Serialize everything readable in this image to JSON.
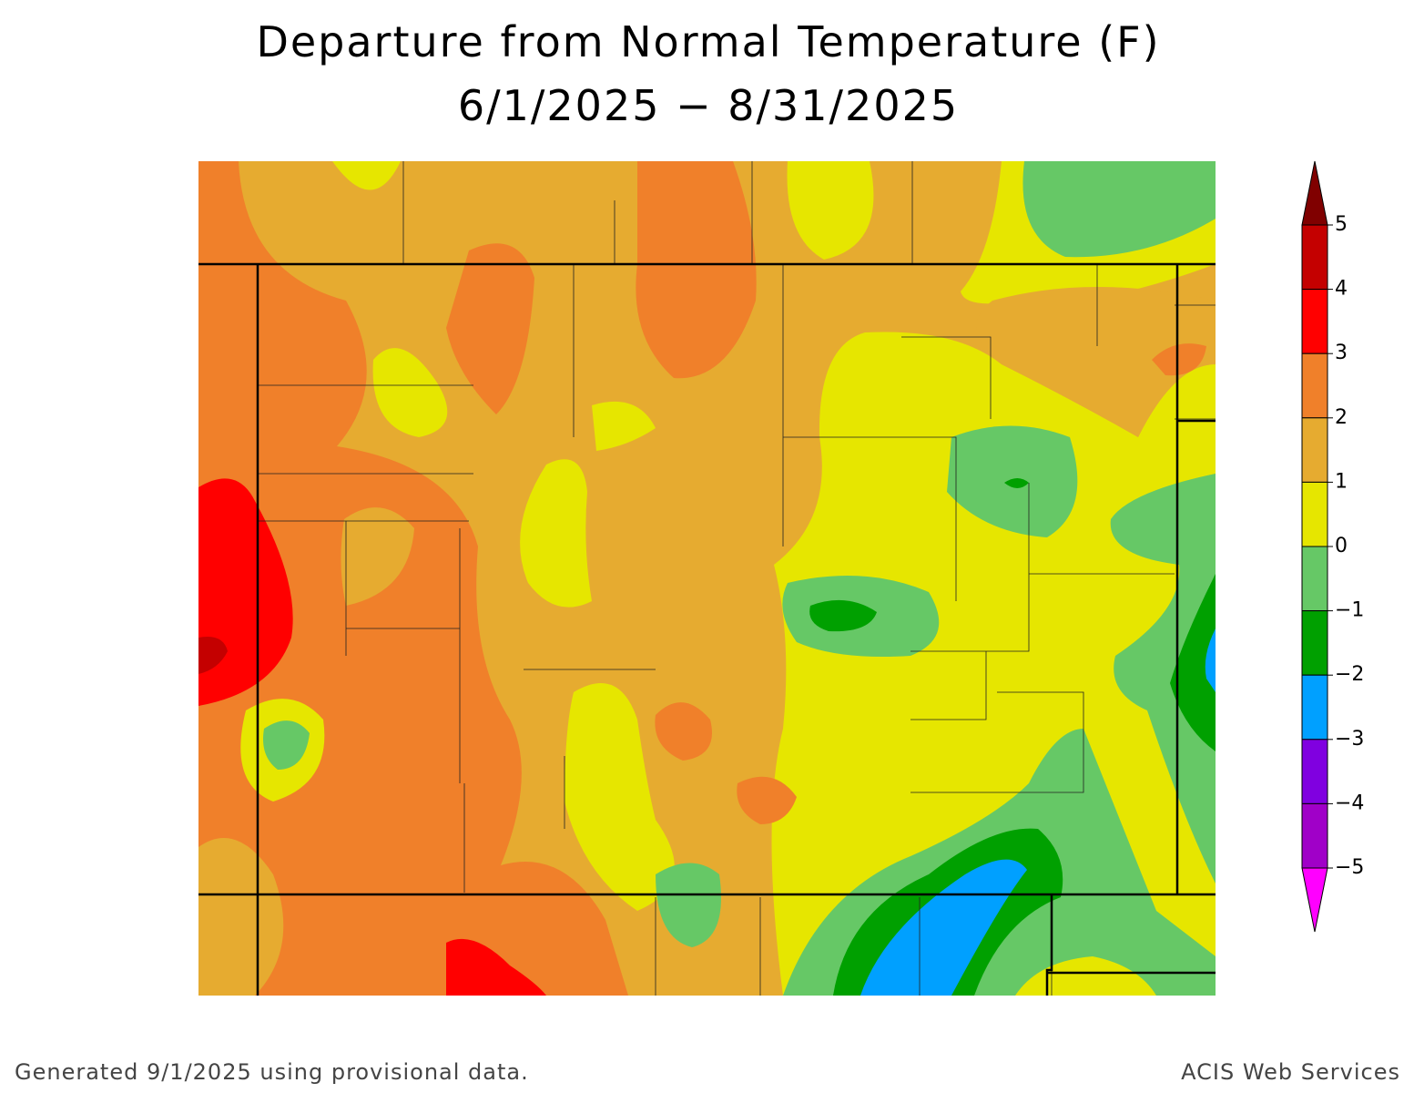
{
  "title": "Departure from Normal Temperature (F)",
  "subtitle": "6/1/2025 − 8/31/2025",
  "legend": {
    "ticks": [
      5,
      4,
      3,
      2,
      1,
      0,
      {
        "value": -1,
        "label": "−1"
      },
      {
        "value": -2,
        "label": "−2"
      },
      {
        "value": -3,
        "label": "−3"
      },
      {
        "value": -4,
        "label": "−4"
      },
      {
        "value": -5,
        "label": "−5"
      }
    ],
    "colors": [
      "#800000",
      "#c40000",
      "#ff0000",
      "#f0802a",
      "#e6ab30",
      "#e6e600",
      "#66c866",
      "#00a000",
      "#00a0ff",
      "#8000e0",
      "#a000c8",
      "#ff00ff"
    ]
  },
  "footer": {
    "left": "Generated 9/1/2025 using provisional data.",
    "right": "ACIS Web Services"
  }
}
